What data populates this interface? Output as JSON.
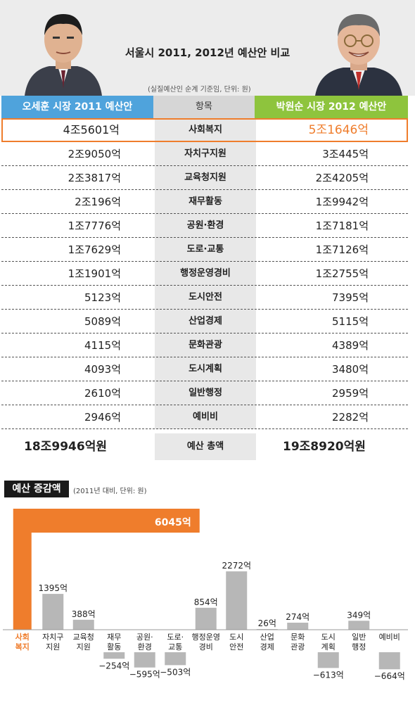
{
  "title": "서울시 2011, 2012년 예산안 비교",
  "note": "(실질예산인 순계 기준임, 단위: 원)",
  "columns": {
    "left": "오세훈 시장 2011 예산안",
    "center": "항목",
    "right": "박원순 시장 2012 예산안"
  },
  "colors": {
    "left": "#4fa3dc",
    "center": "#d6d6d6",
    "right": "#8ec43d",
    "highlight": "#ef7d2c",
    "bar": "#b7b7b7"
  },
  "rows": [
    {
      "left": "4조5601억",
      "item": "사회복지",
      "right": "5조1646억"
    },
    {
      "left": "2조9050억",
      "item": "자치구지원",
      "right": "3조445억"
    },
    {
      "left": "2조3817억",
      "item": "교육청지원",
      "right": "2조4205억"
    },
    {
      "left": "2조196억",
      "item": "재무활동",
      "right": "1조9942억"
    },
    {
      "left": "1조7776억",
      "item": "공원·환경",
      "right": "1조7181억"
    },
    {
      "left": "1조7629억",
      "item": "도로·교통",
      "right": "1조7126억"
    },
    {
      "left": "1조1901억",
      "item": "행정운영경비",
      "right": "1조2755억"
    },
    {
      "left": "5123억",
      "item": "도시안전",
      "right": "7395억"
    },
    {
      "left": "5089억",
      "item": "산업경제",
      "right": "5115억"
    },
    {
      "left": "4115억",
      "item": "문화관광",
      "right": "4389억"
    },
    {
      "left": "4093억",
      "item": "도시계획",
      "right": "3480억"
    },
    {
      "left": "2610억",
      "item": "일반행정",
      "right": "2959억"
    },
    {
      "left": "2946억",
      "item": "예비비",
      "right": "2282억"
    }
  ],
  "total": {
    "left": "18조9946억원",
    "item": "예산 총액",
    "right": "19조8920억원"
  },
  "section": {
    "tag": "예산 증감액",
    "note": "(2011년 대비, 단위: 원)"
  },
  "chart_data": {
    "type": "bar",
    "categories": [
      [
        "사회",
        "복지"
      ],
      [
        "자치구",
        "지원"
      ],
      [
        "교육청",
        "지원"
      ],
      [
        "재무",
        "활동"
      ],
      [
        "공원·",
        "환경"
      ],
      [
        "도로·",
        "교통"
      ],
      [
        "행정운영",
        "경비"
      ],
      [
        "도시",
        "안전"
      ],
      [
        "산업",
        "경제"
      ],
      [
        "문화",
        "관광"
      ],
      [
        "도시",
        "계획"
      ],
      [
        "일반",
        "행정"
      ],
      [
        "예비비"
      ]
    ],
    "values": [
      6045,
      1395,
      388,
      -254,
      -595,
      -503,
      854,
      2272,
      26,
      274,
      -613,
      349,
      -664
    ],
    "labels": [
      "6045억",
      "1395억",
      "388억",
      "−254억",
      "−595억",
      "−503억",
      "854억",
      "2272억",
      "26억",
      "274억",
      "−613억",
      "349억",
      "−664억"
    ],
    "highlight_index": 0
  }
}
